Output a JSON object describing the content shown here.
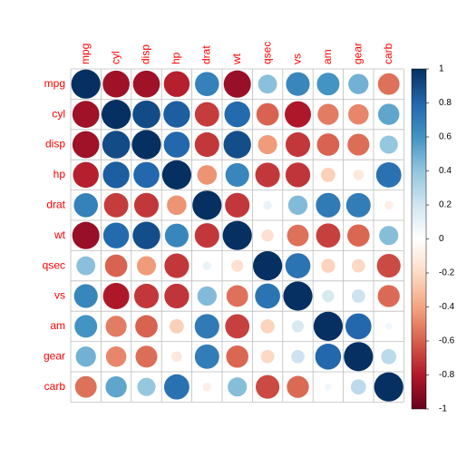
{
  "chart_data": {
    "type": "heatmap",
    "subtype": "correlation-circles",
    "variables": [
      "mpg",
      "cyl",
      "disp",
      "hp",
      "drat",
      "wt",
      "qsec",
      "vs",
      "am",
      "gear",
      "carb"
    ],
    "matrix": [
      [
        1.0,
        -0.85,
        -0.85,
        -0.78,
        0.68,
        -0.87,
        0.42,
        0.66,
        0.6,
        0.48,
        -0.55
      ],
      [
        -0.85,
        1.0,
        0.9,
        0.83,
        -0.7,
        0.78,
        -0.59,
        -0.81,
        -0.52,
        -0.49,
        0.53
      ],
      [
        -0.85,
        0.9,
        1.0,
        0.79,
        -0.71,
        0.89,
        -0.43,
        -0.71,
        -0.59,
        -0.56,
        0.39
      ],
      [
        -0.78,
        0.83,
        0.79,
        1.0,
        -0.45,
        0.66,
        -0.71,
        -0.72,
        -0.24,
        -0.13,
        0.75
      ],
      [
        0.68,
        -0.7,
        -0.71,
        -0.45,
        1.0,
        -0.71,
        0.09,
        0.44,
        0.71,
        0.7,
        -0.09
      ],
      [
        -0.87,
        0.78,
        0.89,
        0.66,
        -0.71,
        1.0,
        -0.17,
        -0.55,
        -0.69,
        -0.58,
        0.43
      ],
      [
        0.42,
        -0.59,
        -0.43,
        -0.71,
        0.09,
        -0.17,
        1.0,
        0.74,
        -0.23,
        -0.21,
        -0.66
      ],
      [
        0.66,
        -0.81,
        -0.71,
        -0.72,
        0.44,
        -0.55,
        0.74,
        1.0,
        0.17,
        0.21,
        -0.57
      ],
      [
        0.6,
        -0.52,
        -0.59,
        -0.24,
        0.71,
        -0.69,
        -0.23,
        0.17,
        1.0,
        0.79,
        0.06
      ],
      [
        0.48,
        -0.49,
        -0.56,
        -0.13,
        0.7,
        -0.58,
        -0.21,
        0.21,
        0.79,
        1.0,
        0.27
      ],
      [
        -0.55,
        0.53,
        0.39,
        0.75,
        -0.09,
        0.43,
        -0.66,
        -0.57,
        0.06,
        0.27,
        1.0
      ]
    ],
    "color_scale": {
      "min": -1,
      "max": 1,
      "stops": [
        {
          "value": -1.0,
          "color": "#67001F"
        },
        {
          "value": -0.8,
          "color": "#B2182B"
        },
        {
          "value": -0.6,
          "color": "#D6604D"
        },
        {
          "value": -0.4,
          "color": "#F4A582"
        },
        {
          "value": -0.2,
          "color": "#FDDBC7"
        },
        {
          "value": 0.0,
          "color": "#FFFFFF"
        },
        {
          "value": 0.2,
          "color": "#D1E5F0"
        },
        {
          "value": 0.4,
          "color": "#92C5DE"
        },
        {
          "value": 0.6,
          "color": "#4393C3"
        },
        {
          "value": 0.8,
          "color": "#2166AC"
        },
        {
          "value": 1.0,
          "color": "#053061"
        }
      ]
    },
    "legend": {
      "position": "right",
      "ticks": [
        "1",
        "0.8",
        "0.6",
        "0.4",
        "0.2",
        "0",
        "-0.2",
        "-0.4",
        "-0.6",
        "-0.8",
        "-1"
      ]
    },
    "label_color": "#FF0000",
    "grid_color": "#BEBEBE",
    "title": "",
    "xlabel": "",
    "ylabel": ""
  }
}
